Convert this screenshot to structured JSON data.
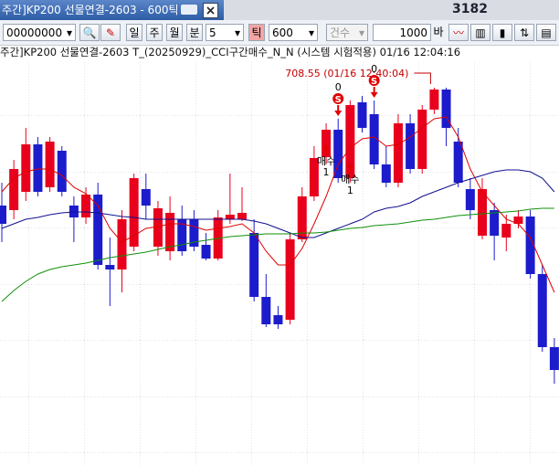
{
  "window": {
    "title": "주간]KP200 선물연결-2603 - 600틱",
    "background_text": "3182"
  },
  "toolbar": {
    "code": "00000000",
    "periods": [
      "일",
      "주",
      "월",
      "분"
    ],
    "interval": "5",
    "tick": "틱",
    "tick_count": "600",
    "count_label": "건수",
    "bars": "1000",
    "bars_unit": "바"
  },
  "status": "주간]KP200 선물연결-2603 T_(20250929)_CCI구간매수_N_N (시스템 시험적용) 01/16 12:04:16",
  "chart_data": {
    "type": "candlestick",
    "ylim": [
      687.9,
      710.05
    ],
    "up_color": "#e8001c",
    "down_color": "#1c1ccc",
    "categories": [
      null,
      null,
      null,
      null,
      null,
      null,
      null,
      null,
      null,
      null,
      null,
      null,
      null,
      null,
      null,
      null,
      null,
      null,
      null,
      null,
      null,
      null,
      null,
      null,
      null,
      null,
      null,
      null,
      null,
      null,
      null,
      null,
      null,
      null,
      null,
      null,
      null,
      null,
      null,
      null,
      null,
      null,
      null,
      null,
      null,
      null,
      null
    ],
    "open": [
      702.1,
      701.85,
      702.85,
      705.45,
      703.1,
      705.1,
      702.1,
      701.45,
      702.7,
      698.85,
      698.6,
      699.85,
      703.0,
      699.85,
      699.6,
      701.35,
      701.35,
      699.95,
      699.2,
      701.35,
      701.35,
      700.6,
      697.1,
      696.1,
      695.85,
      700.25,
      702.6,
      704.75,
      706.25,
      703.6,
      707.75,
      707.1,
      704.35,
      703.35,
      706.6,
      704.1,
      707.35,
      708.45,
      705.6,
      703.0,
      700.45,
      701.85,
      700.35,
      701.1,
      701.5,
      698.35,
      694.35
    ],
    "high": [
      703.35,
      704.6,
      706.35,
      705.85,
      705.85,
      705.35,
      702.6,
      703.1,
      703.35,
      700.35,
      701.85,
      703.85,
      703.85,
      702.35,
      702.6,
      702.1,
      701.85,
      700.6,
      701.85,
      703.85,
      703.1,
      701.35,
      698.35,
      696.6,
      700.6,
      703.1,
      705.35,
      706.6,
      706.85,
      707.85,
      708.1,
      707.85,
      705.35,
      707.1,
      707.1,
      707.6,
      708.55,
      708.55,
      706.35,
      703.6,
      703.6,
      702.25,
      701.6,
      701.85,
      701.85,
      698.85,
      694.85
    ],
    "low": [
      700.1,
      701.35,
      702.35,
      702.6,
      702.85,
      702.6,
      700.1,
      701.1,
      698.6,
      696.6,
      697.35,
      699.6,
      701.35,
      699.35,
      699.1,
      699.35,
      699.6,
      699.1,
      699.1,
      701.1,
      701.25,
      696.85,
      695.45,
      695.35,
      695.6,
      700.1,
      702.35,
      704.35,
      703.35,
      703.35,
      706.1,
      704.1,
      703.1,
      703.1,
      703.85,
      703.85,
      707.1,
      705.35,
      703.1,
      701.35,
      700.25,
      699.1,
      699.6,
      700.85,
      698.1,
      694.1,
      692.35
    ],
    "close": [
      701.1,
      704.1,
      705.45,
      702.85,
      705.6,
      702.85,
      701.45,
      702.7,
      698.85,
      698.6,
      701.35,
      703.6,
      702.1,
      701.95,
      701.7,
      699.6,
      699.85,
      699.2,
      701.45,
      701.6,
      701.7,
      697.1,
      695.6,
      695.6,
      700.25,
      702.6,
      704.7,
      706.25,
      703.6,
      707.6,
      706.35,
      704.35,
      703.35,
      706.6,
      704.1,
      707.35,
      708.45,
      706.35,
      703.35,
      701.85,
      703.0,
      700.45,
      701.1,
      701.5,
      698.35,
      694.35,
      693.1
    ],
    "moving_averages": [
      {
        "color": "#e00000",
        "values": [
          702.85,
          703.6,
          703.95,
          704.1,
          704.1,
          703.75,
          703.1,
          702.75,
          702.1,
          700.85,
          700.1,
          700.45,
          700.85,
          700.95,
          701.1,
          701.1,
          700.95,
          700.75,
          700.85,
          700.95,
          701.1,
          700.6,
          699.6,
          698.85,
          698.85,
          699.75,
          701.1,
          702.6,
          704.35,
          705.25,
          705.75,
          705.85,
          705.35,
          705.45,
          705.85,
          706.35,
          706.85,
          706.95,
          705.85,
          704.1,
          702.85,
          702.1,
          701.35,
          701.1,
          700.35,
          698.85,
          697.35
        ]
      },
      {
        "color": "#101090",
        "values": [
          700.85,
          701.1,
          701.35,
          701.45,
          701.6,
          701.7,
          701.75,
          701.75,
          701.7,
          701.6,
          701.5,
          701.45,
          701.35,
          701.35,
          701.35,
          701.35,
          701.35,
          701.35,
          701.35,
          701.35,
          701.35,
          701.25,
          701.1,
          700.85,
          700.6,
          700.35,
          700.35,
          700.6,
          700.85,
          701.1,
          701.35,
          701.75,
          701.95,
          702.05,
          702.25,
          702.6,
          702.85,
          703.1,
          703.35,
          703.55,
          703.75,
          703.95,
          704.05,
          704.05,
          703.95,
          703.6,
          702.85
        ]
      },
      {
        "color": "#10900a",
        "values": [
          696.85,
          697.45,
          697.95,
          698.35,
          698.6,
          698.75,
          698.85,
          698.95,
          699.1,
          699.25,
          699.35,
          699.45,
          699.55,
          699.7,
          699.85,
          699.95,
          700.1,
          700.2,
          700.3,
          700.4,
          700.45,
          700.5,
          700.55,
          700.55,
          700.55,
          700.6,
          700.6,
          700.65,
          700.75,
          700.85,
          700.9,
          701.0,
          701.05,
          701.1,
          701.2,
          701.3,
          701.35,
          701.45,
          701.55,
          701.6,
          701.65,
          701.7,
          701.75,
          701.8,
          701.9,
          701.95,
          701.95
        ]
      }
    ],
    "annotation": "708.55 (01/16 12:40:04)",
    "signals": [
      {
        "type": "buy",
        "index": 27,
        "label": "매수",
        "count": 1
      },
      {
        "type": "buy",
        "index": 29,
        "label": "매수",
        "count": 1
      },
      {
        "type": "sell",
        "index": 28,
        "symbol": "S",
        "count": 0
      },
      {
        "type": "sell",
        "index": 31,
        "symbol": "S",
        "count": 0
      }
    ]
  }
}
